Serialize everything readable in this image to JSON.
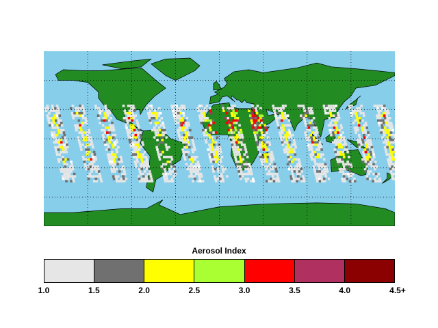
{
  "legend": {
    "title": "Aerosol Index",
    "bins": [
      {
        "from": "1.0",
        "to": "1.5",
        "color": "#e6e6e6"
      },
      {
        "from": "1.5",
        "to": "2.0",
        "color": "#707070"
      },
      {
        "from": "2.0",
        "to": "2.5",
        "color": "#ffff00"
      },
      {
        "from": "2.5",
        "to": "3.0",
        "color": "#aaff33"
      },
      {
        "from": "3.0",
        "to": "3.5",
        "color": "#ff0000"
      },
      {
        "from": "3.5",
        "to": "4.0",
        "color": "#b03060"
      },
      {
        "from": "4.0",
        "to": "4.5+",
        "color": "#8b0000"
      }
    ],
    "ticks": [
      "1.0",
      "1.5",
      "2.0",
      "2.5",
      "3.0",
      "3.5",
      "4.0",
      "4.5+"
    ]
  },
  "map": {
    "projection": "equirectangular",
    "ocean_color": "#87ceeb",
    "land_color": "#228b22",
    "no_data_color": "#ffffff",
    "graticule_lon": [
      -135,
      -90,
      -45,
      0,
      45,
      90,
      135
    ],
    "graticule_lat": [
      60,
      30,
      0,
      -30,
      -60
    ]
  }
}
